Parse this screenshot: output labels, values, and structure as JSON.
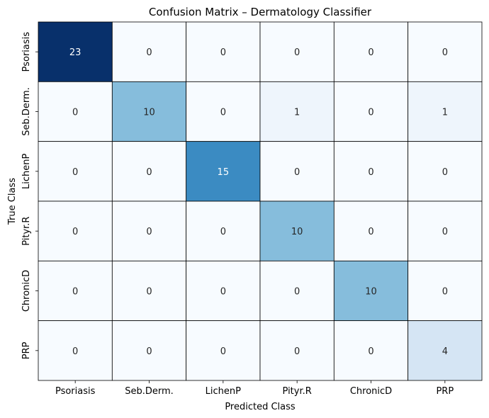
{
  "chart_data": {
    "type": "heatmap",
    "title": "Confusion Matrix – Dermatology Classifier",
    "xlabel": "Predicted Class",
    "ylabel": "True Class",
    "x_categories": [
      "Psoriasis",
      "Seb.Derm.",
      "LichenP",
      "Pityr.R",
      "ChronicD",
      "PRP"
    ],
    "y_categories": [
      "Psoriasis",
      "Seb.Derm.",
      "LichenP",
      "Pityr.R",
      "ChronicD",
      "PRP"
    ],
    "values": [
      [
        23,
        0,
        0,
        0,
        0,
        0
      ],
      [
        0,
        10,
        0,
        1,
        0,
        1
      ],
      [
        0,
        0,
        15,
        0,
        0,
        0
      ],
      [
        0,
        0,
        0,
        10,
        0,
        0
      ],
      [
        0,
        0,
        0,
        0,
        10,
        0
      ],
      [
        0,
        0,
        0,
        0,
        0,
        4
      ]
    ],
    "colormap": "Blues",
    "vmin": 0,
    "vmax": 23,
    "annotations": true,
    "colorbar": false
  }
}
